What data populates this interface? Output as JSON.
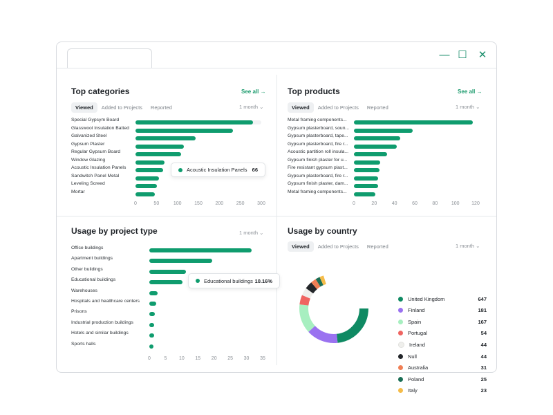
{
  "window": {
    "controls": {
      "minimize": "—",
      "maximize": "☐",
      "close": "✕"
    }
  },
  "top_categories": {
    "title": "Top categories",
    "see_all": "See all →",
    "filters": [
      "Viewed",
      "Added to Projects",
      "Reported"
    ],
    "period": "1 month ⌄",
    "tooltip": {
      "label": "Acoustic Insulation Panels",
      "value": "66"
    },
    "chart_data": {
      "type": "bar",
      "orientation": "horizontal",
      "categories": [
        "Special Gypsym Board",
        "Glasswool Insulation Batted",
        "Galvanized Steel",
        "Gypsum Plaster",
        "Regular Gypsum Board",
        "Window Glazing",
        "Acoustic Insulation Panels",
        "Sandwitch Panel Metal",
        "Leveling Screed",
        "Mortar"
      ],
      "values": [
        280,
        232,
        144,
        116,
        109,
        70,
        66,
        56,
        51,
        46
      ],
      "xlim": [
        0,
        300
      ],
      "xticks": [
        "0",
        "50",
        "100",
        "150",
        "200",
        "250",
        "300"
      ]
    }
  },
  "top_products": {
    "title": "Top products",
    "see_all": "See all →",
    "filters": [
      "Viewed",
      "Added to Projects",
      "Reported"
    ],
    "period": "1 month ⌄",
    "chart_data": {
      "type": "bar",
      "orientation": "horizontal",
      "categories": [
        "Metal framing components...",
        "Gypsum plasterboard, soun...",
        "Gypsum plasterboard, tape...",
        "Gypsum plasterboard, fire r...",
        "Acoustic partition roll insula...",
        "Gypsum finish plaster for u...",
        "Fire resistant gypsum plast...",
        "Gypsum plasterboard, fire r...",
        "Gypsum finish plaster, dam...",
        "Metal framing components..."
      ],
      "values": [
        117,
        58,
        46,
        42,
        33,
        26,
        25,
        24,
        24,
        21
      ],
      "xlim": [
        0,
        120
      ],
      "xticks": [
        "0",
        "20",
        "40",
        "60",
        "80",
        "100",
        "120"
      ]
    }
  },
  "usage_project": {
    "title": "Usage by project type",
    "period": "1 month ⌄",
    "tooltip": {
      "label": "Educational buildings",
      "value": "10.16%"
    },
    "chart_data": {
      "type": "bar",
      "orientation": "horizontal",
      "categories": [
        "Office buildings",
        "Apartment buildings",
        "Other buildings",
        "Educational buildings",
        "Warehouses",
        "Hospitals and healthcare centers",
        "Prisons",
        "Industrial production buildings",
        "Hotels and similar buildings",
        "Sports halls"
      ],
      "values": [
        31.5,
        19.5,
        11.3,
        10.16,
        2.6,
        2.1,
        1.7,
        1.6,
        1.4,
        1.2
      ],
      "xlim": [
        0,
        35
      ],
      "xticks": [
        "0",
        "5",
        "10",
        "15",
        "20",
        "25",
        "30",
        "35"
      ]
    }
  },
  "usage_country": {
    "title": "Usage by country",
    "filters": [
      "Viewed",
      "Added to Projects",
      "Reported"
    ],
    "period": "1 month ⌄",
    "chart_data": {
      "type": "pie",
      "style": "donut",
      "categories": [
        "United Kingdom",
        "Finland",
        "Spain",
        "Portugal",
        "Ireland",
        "Null",
        "Australia",
        "Poland",
        "Italy"
      ],
      "values": [
        647,
        181,
        167,
        54,
        44,
        44,
        31,
        25,
        23
      ],
      "display_values": [
        "647",
        "181",
        "167",
        "54",
        "44",
        "44",
        "31",
        "25",
        "23"
      ],
      "colors": [
        "#0f8a63",
        "#9a72f0",
        "#a7efc0",
        "#ef6461",
        "#efefec",
        "#23262a",
        "#f07f55",
        "#1b6e55",
        "#f5bc4a"
      ]
    }
  }
}
